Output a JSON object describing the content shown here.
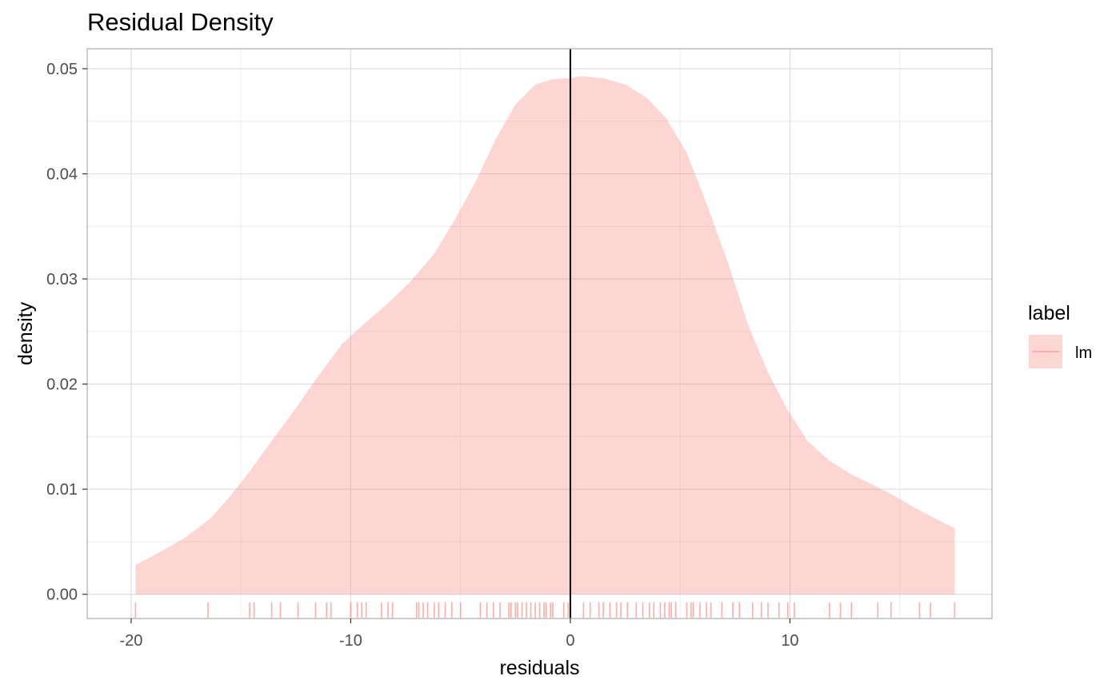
{
  "chart_data": {
    "type": "area",
    "title": "Residual Density",
    "xlabel": "residuals",
    "ylabel": "density",
    "xlim": [
      -22,
      19.2
    ],
    "ylim": [
      -0.0023,
      0.0519
    ],
    "x_ticks": [
      -20,
      -10,
      0,
      10
    ],
    "x_tick_labels": [
      "-20",
      "-10",
      "0",
      "10"
    ],
    "y_ticks": [
      0,
      0.01,
      0.02,
      0.03,
      0.04,
      0.05
    ],
    "y_tick_labels": [
      "0.00",
      "0.01",
      "0.02",
      "0.03",
      "0.04",
      "0.05"
    ],
    "grid": true,
    "vline_x": 0,
    "series": [
      {
        "name": "lm",
        "color": "#F8766D",
        "density": {
          "x": [
            -19.8,
            -18.8,
            -17.6,
            -16.4,
            -15.5,
            -14.6,
            -13.6,
            -12.5,
            -11.5,
            -10.4,
            -9.4,
            -8.3,
            -7.3,
            -6.2,
            -5.3,
            -4.3,
            -3.4,
            -2.5,
            -1.6,
            -0.8,
            0,
            0.5,
            1.5,
            2.5,
            3.5,
            4.4,
            5.3,
            6.2,
            7.2,
            8.1,
            9.0,
            9.9,
            10.8,
            11.8,
            12.8,
            13.8,
            14.8,
            15.8,
            16.8,
            17.5
          ],
          "y": [
            0.0028,
            0.0039,
            0.0053,
            0.0072,
            0.0093,
            0.0117,
            0.0146,
            0.0177,
            0.0207,
            0.0238,
            0.0257,
            0.0277,
            0.0297,
            0.0324,
            0.0355,
            0.0393,
            0.0433,
            0.0466,
            0.0485,
            0.049,
            0.0491,
            0.0493,
            0.0491,
            0.0485,
            0.0472,
            0.0452,
            0.042,
            0.0372,
            0.0314,
            0.0256,
            0.0211,
            0.0175,
            0.0146,
            0.0127,
            0.0114,
            0.0104,
            0.0093,
            0.0081,
            0.007,
            0.0063
          ]
        },
        "rug": [
          -19.8,
          -16.5,
          -14.6,
          -14.4,
          -13.6,
          -13.2,
          -12.4,
          -11.6,
          -11.1,
          -10.9,
          -10.0,
          -9.7,
          -9.5,
          -9.3,
          -8.6,
          -8.3,
          -8.1,
          -7.0,
          -6.9,
          -6.7,
          -6.5,
          -6.2,
          -6.0,
          -5.7,
          -5.4,
          -5.0,
          -4.1,
          -3.8,
          -3.5,
          -3.2,
          -2.8,
          -2.7,
          -2.5,
          -2.4,
          -2.2,
          -2.0,
          -1.8,
          -1.6,
          -1.4,
          -1.2,
          -1.1,
          -0.9,
          -0.8,
          -0.3,
          -0.1,
          0.0,
          0.6,
          0.9,
          1.3,
          1.5,
          1.8,
          2.1,
          2.3,
          2.6,
          3.0,
          3.3,
          3.6,
          3.8,
          4.1,
          4.3,
          4.5,
          4.6,
          4.8,
          5.3,
          5.5,
          5.6,
          5.9,
          6.2,
          6.4,
          6.9,
          7.4,
          7.7,
          8.3,
          8.7,
          9.0,
          9.5,
          9.9,
          10.2,
          11.8,
          12.3,
          12.8,
          14.0,
          14.6,
          15.9,
          16.4,
          17.5
        ]
      }
    ],
    "legend": {
      "title": "label",
      "placement": "right",
      "entries": [
        "lm"
      ]
    }
  },
  "colors": {
    "panel_background": "#ffffff",
    "panel_border": "#b3b3b3",
    "grid_major": "#dddddd",
    "grid_minor": "#ececec",
    "fill": "#F8766D",
    "fill_alpha": 0.3,
    "vline": "#000000"
  }
}
